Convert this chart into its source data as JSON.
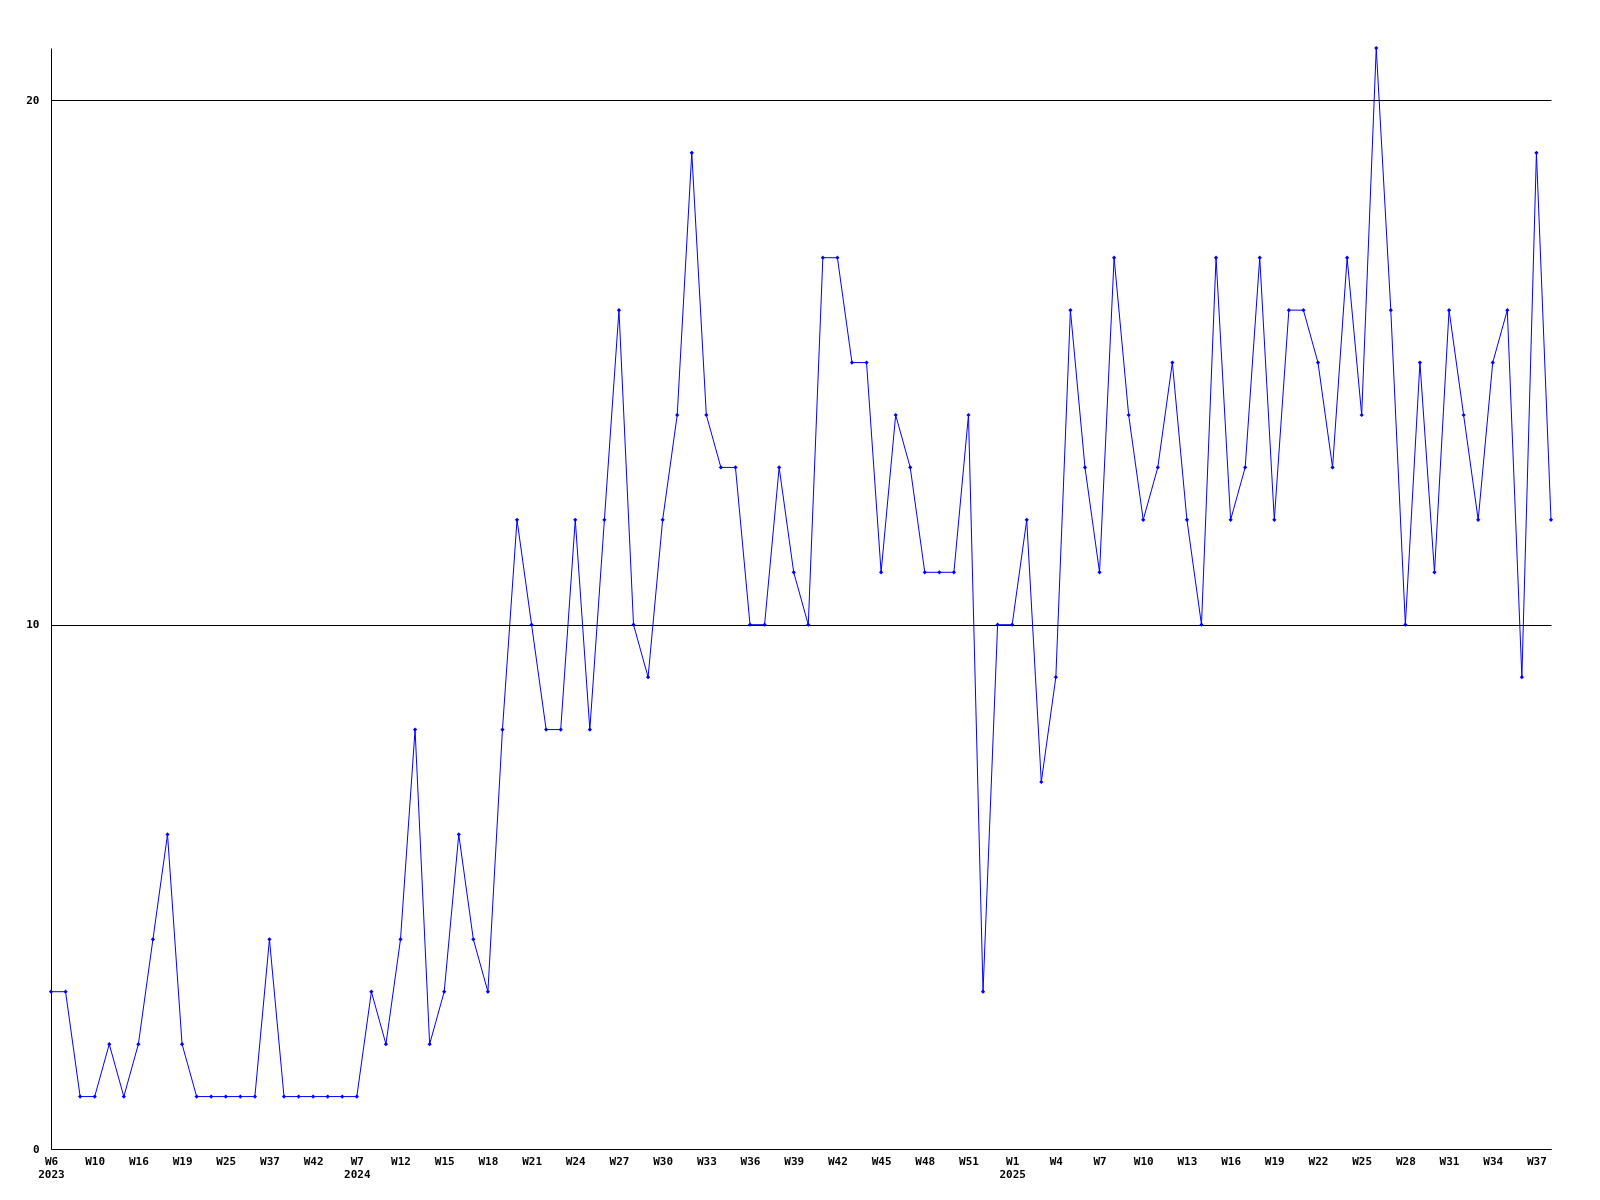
{
  "chart_data": {
    "type": "line",
    "categories": [
      "W6\n2023",
      null,
      null,
      "W10",
      null,
      null,
      "W16",
      null,
      null,
      "W19",
      null,
      null,
      "W25",
      null,
      null,
      "W37",
      null,
      null,
      "W42",
      null,
      null,
      "W7\n2024",
      null,
      null,
      "W12",
      null,
      null,
      "W15",
      null,
      null,
      "W18",
      null,
      null,
      "W21",
      null,
      null,
      "W24",
      null,
      null,
      "W27",
      null,
      null,
      "W30",
      null,
      null,
      "W33",
      null,
      null,
      "W36",
      null,
      null,
      "W39",
      null,
      null,
      "W42",
      null,
      null,
      "W45",
      null,
      null,
      "W48",
      null,
      null,
      "W51",
      null,
      null,
      "W1\n2025",
      null,
      null,
      "W4",
      null,
      null,
      "W7",
      null,
      null,
      "W10",
      null,
      null,
      "W13",
      null,
      null,
      "W16",
      null,
      null,
      "W19",
      null,
      null,
      "W22",
      null,
      null,
      "W25",
      null,
      null,
      "W28",
      null,
      null,
      "W31",
      null,
      null,
      "W34",
      null,
      null,
      "W37",
      null
    ],
    "values": [
      3,
      3,
      1,
      1,
      2,
      1,
      2,
      4,
      6,
      2,
      1,
      1,
      1,
      1,
      1,
      4,
      1,
      1,
      1,
      1,
      1,
      1,
      3,
      2,
      4,
      8,
      2,
      3,
      6,
      4,
      3,
      8,
      12,
      10,
      8,
      8,
      12,
      8,
      12,
      16,
      10,
      9,
      12,
      14,
      19,
      14,
      13,
      13,
      10,
      10,
      13,
      11,
      10,
      17,
      17,
      15,
      15,
      11,
      14,
      13,
      11,
      11,
      11,
      14,
      3,
      10,
      10,
      12,
      7,
      9,
      16,
      13,
      11,
      17,
      14,
      12,
      13,
      15,
      12,
      10,
      17,
      12,
      13,
      17,
      12,
      16,
      16,
      15,
      13,
      17,
      14,
      21,
      16,
      10,
      15,
      11,
      16,
      14,
      12,
      15,
      16,
      9,
      19,
      12
    ],
    "color": "#0000ff",
    "ylim": [
      0,
      21
    ],
    "yticks": [
      0,
      10,
      20
    ],
    "grid": "y",
    "marker": "diamond",
    "line_style": "solid"
  }
}
